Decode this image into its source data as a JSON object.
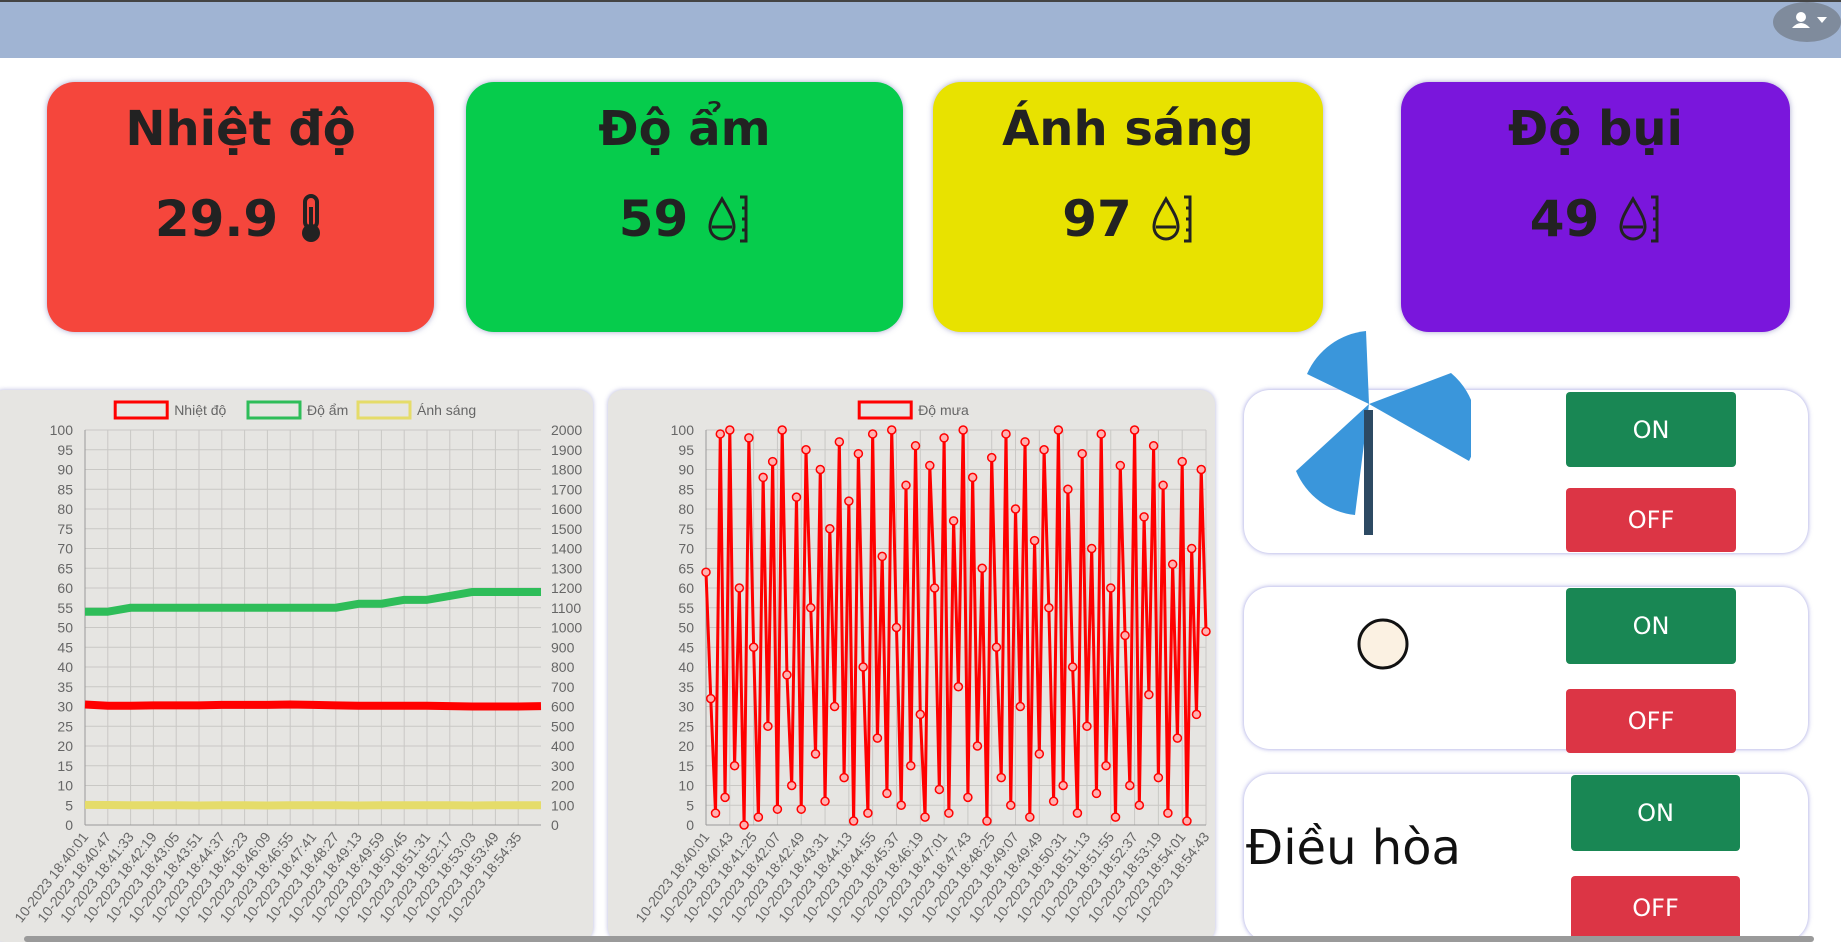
{
  "cards": [
    {
      "title": "Nhiệt độ",
      "value": 29.9,
      "color": "#f5463c"
    },
    {
      "title": "Độ ẩm",
      "value": 59,
      "color": "#06cc4c"
    },
    {
      "title": "Ánh sáng",
      "value": 97,
      "color": "#e8e200"
    },
    {
      "title": "Độ bụi",
      "value": 49,
      "color": "#7a16dc"
    }
  ],
  "controls": [
    {
      "on": "ON",
      "off": "OFF"
    },
    {
      "on": "ON",
      "off": "OFF"
    },
    {
      "label": "Điều hòa",
      "on": "ON",
      "off": "OFF"
    }
  ],
  "chart_data": [
    {
      "type": "line",
      "legend": "top",
      "grid": true,
      "categories": [
        "10-2023 18:40:01",
        "10-2023 18:40:47",
        "10-2023 18:41:33",
        "10-2023 18:42:19",
        "10-2023 18:43:05",
        "10-2023 18:43:51",
        "10-2023 18:44:37",
        "10-2023 18:45:23",
        "10-2023 18:46:09",
        "10-2023 18:46:55",
        "10-2023 18:47:41",
        "10-2023 18:48:27",
        "10-2023 18:49:13",
        "10-2023 18:49:59",
        "10-2023 18:50:45",
        "10-2023 18:51:31",
        "10-2023 18:52:17",
        "10-2023 18:53:03",
        "10-2023 18:53:49",
        "10-2023 18:54:35",
        null
      ],
      "series": [
        {
          "name": "Nhiệt độ",
          "color": "#ff0000",
          "values": [
            30.5,
            30.2,
            30.2,
            30.3,
            30.3,
            30.3,
            30.4,
            30.4,
            30.4,
            30.5,
            30.4,
            30.3,
            30.2,
            30.2,
            30.2,
            30.2,
            30.1,
            30.0,
            30.0,
            30.0,
            30.1
          ]
        },
        {
          "name": "Độ ẩm",
          "color": "#2ebd59",
          "values": [
            54,
            54,
            55,
            55,
            55,
            55,
            55,
            55,
            55,
            55,
            55,
            55,
            56,
            56,
            57,
            57,
            58,
            59,
            59,
            59,
            59
          ]
        },
        {
          "name": "Ánh sáng",
          "color": "#e5dc6a",
          "axis": "y2",
          "values": [
            102,
            101,
            100,
            100,
            100,
            99,
            100,
            100,
            99,
            100,
            100,
            100,
            99,
            100,
            100,
            100,
            100,
            99,
            100,
            100,
            100
          ]
        }
      ],
      "ylim": [
        0,
        100
      ],
      "yticks": [
        0,
        5,
        10,
        15,
        20,
        25,
        30,
        35,
        40,
        45,
        50,
        55,
        60,
        65,
        70,
        75,
        80,
        85,
        90,
        95,
        100
      ],
      "y2lim": [
        0,
        2000
      ],
      "y2ticks": [
        0,
        100,
        200,
        300,
        400,
        500,
        600,
        700,
        800,
        900,
        1000,
        1100,
        1200,
        1300,
        1400,
        1500,
        1600,
        1700,
        1800,
        1900,
        2000
      ]
    },
    {
      "type": "line",
      "legend": "top",
      "grid": true,
      "markers": true,
      "categories": [
        "10-2023 18:40:01",
        null,
        null,
        null,
        null,
        "10-2023 18:40:43",
        null,
        null,
        null,
        null,
        "10-2023 18:41:25",
        null,
        null,
        null,
        null,
        "10-2023 18:42:07",
        null,
        null,
        null,
        null,
        "10-2023 18:42:49",
        null,
        null,
        null,
        null,
        "10-2023 18:43:31",
        null,
        null,
        null,
        null,
        "10-2023 18:44:13",
        null,
        null,
        null,
        null,
        "10-2023 18:44:55",
        null,
        null,
        null,
        null,
        "10-2023 18:45:37",
        null,
        null,
        null,
        null,
        "10-2023 18:46:19",
        null,
        null,
        null,
        null,
        "10-2023 18:47:01",
        null,
        null,
        null,
        null,
        "10-2023 18:47:43",
        null,
        null,
        null,
        null,
        "10-2023 18:48:25",
        null,
        null,
        null,
        null,
        "10-2023 18:49:07",
        null,
        null,
        null,
        null,
        "10-2023 18:49:49",
        null,
        null,
        null,
        null,
        "10-2023 18:50:31",
        null,
        null,
        null,
        null,
        "10-2023 18:51:13",
        null,
        null,
        null,
        null,
        "10-2023 18:51:55",
        null,
        null,
        null,
        null,
        "10-2023 18:52:37",
        null,
        null,
        null,
        null,
        "10-2023 18:53:19",
        null,
        null,
        null,
        null,
        "10-2023 18:54:01",
        null,
        null,
        null,
        null,
        "10-2023 18:54:43"
      ],
      "series": [
        {
          "name": "Độ mưa",
          "color": "#ff0000",
          "values": [
            64,
            32,
            3,
            99,
            7,
            100,
            15,
            60,
            0,
            98,
            45,
            2,
            88,
            25,
            92,
            4,
            100,
            38,
            10,
            83,
            4,
            95,
            55,
            18,
            90,
            6,
            75,
            30,
            97,
            12,
            82,
            1,
            94,
            40,
            3,
            99,
            22,
            68,
            8,
            100,
            50,
            5,
            86,
            15,
            96,
            28,
            2,
            91,
            60,
            9,
            98,
            3,
            77,
            35,
            100,
            7,
            88,
            20,
            65,
            1,
            93,
            45,
            12,
            99,
            5,
            80,
            30,
            97,
            2,
            72,
            18,
            95,
            55,
            6,
            100,
            10,
            85,
            40,
            3,
            94,
            25,
            70,
            8,
            99,
            15,
            60,
            2,
            91,
            48,
            10,
            100,
            5,
            78,
            33,
            96,
            12,
            86,
            3,
            66,
            22,
            92,
            1,
            70,
            28,
            90,
            49
          ]
        }
      ],
      "ylim": [
        0,
        100
      ],
      "yticks": [
        0,
        5,
        10,
        15,
        20,
        25,
        30,
        35,
        40,
        45,
        50,
        55,
        60,
        65,
        70,
        75,
        80,
        85,
        90,
        95,
        100
      ]
    }
  ]
}
